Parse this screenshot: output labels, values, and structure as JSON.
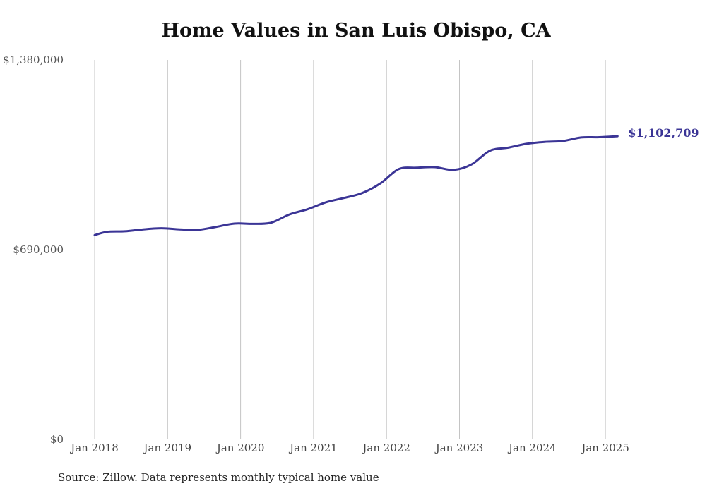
{
  "chart_data": {
    "type": "line",
    "title": "Home Values in San Luis Obispo, CA",
    "source": "Source: Zillow. Data represents monthly typical home value",
    "xlabel": "",
    "ylabel": "",
    "ylim": [
      0,
      1380000
    ],
    "yticks": [
      {
        "value": 0,
        "label": "$0"
      },
      {
        "value": 690000,
        "label": "$690,000"
      },
      {
        "value": 1380000,
        "label": "$1,380,000"
      }
    ],
    "xticks": [
      "Jan 2018",
      "Jan 2019",
      "Jan 2020",
      "Jan 2021",
      "Jan 2022",
      "Jan 2023",
      "Jan 2024",
      "Jan 2025"
    ],
    "grid": "vertical",
    "line_color": "#3b3596",
    "end_label": "$1,102,709",
    "series": [
      {
        "x": [
          "2018-01",
          "2018-03",
          "2018-06",
          "2018-09",
          "2018-12",
          "2019-03",
          "2019-06",
          "2019-09",
          "2019-12",
          "2020-03",
          "2020-06",
          "2020-09",
          "2020-12",
          "2021-03",
          "2021-06",
          "2021-09",
          "2021-12",
          "2022-03",
          "2022-06",
          "2022-09",
          "2022-12",
          "2023-03",
          "2023-06",
          "2023-09",
          "2023-12",
          "2024-03",
          "2024-06",
          "2024-09",
          "2024-12",
          "2025-03"
        ],
        "values": [
          743000,
          755000,
          757000,
          764000,
          768000,
          764000,
          762000,
          773000,
          785000,
          784000,
          788000,
          818000,
          837000,
          862000,
          878000,
          896000,
          931000,
          983000,
          988000,
          990000,
          980000,
          1000000,
          1050000,
          1061000,
          1075000,
          1082000,
          1085000,
          1098000,
          1099000,
          1102709
        ]
      }
    ]
  }
}
